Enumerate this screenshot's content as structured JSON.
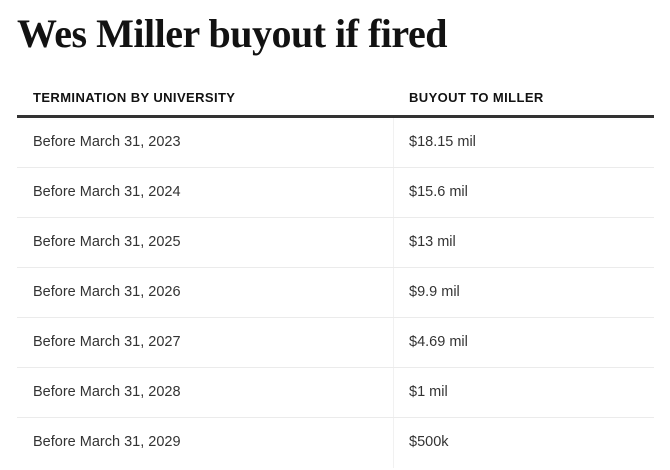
{
  "title": "Wes Miller buyout if fired",
  "table": {
    "headers": [
      "TERMINATION BY UNIVERSITY",
      "BUYOUT TO MILLER"
    ],
    "rows": [
      [
        "Before March 31, 2023",
        "$18.15 mil"
      ],
      [
        "Before March 31, 2024",
        "$15.6 mil"
      ],
      [
        "Before March 31, 2025",
        "$13 mil"
      ],
      [
        "Before March 31, 2026",
        "$9.9 mil"
      ],
      [
        "Before March 31, 2027",
        "$4.69 mil"
      ],
      [
        "Before March 31, 2028",
        "$1 mil"
      ],
      [
        "Before March 31, 2029",
        "$500k"
      ]
    ]
  },
  "colors": {
    "text": "#121212",
    "cell_text": "#333333",
    "header_rule": "#333333",
    "row_divider": "#ebebeb"
  }
}
